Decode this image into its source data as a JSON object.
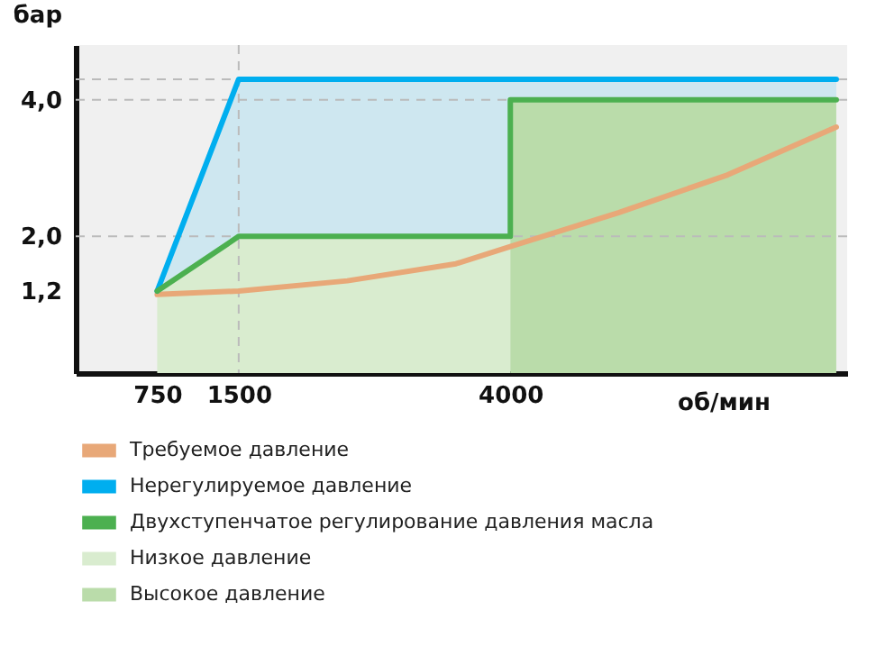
{
  "chart_data": {
    "type": "line",
    "xlabel": "об/мин",
    "ylabel": "бар",
    "xlim": [
      0,
      7100
    ],
    "ylim": [
      0,
      4.8
    ],
    "xticks": [
      750,
      1500,
      4000
    ],
    "yticks": [
      {
        "value": 1.2,
        "label": "1,2"
      },
      {
        "value": 2,
        "label": "2,0"
      },
      {
        "value": 4,
        "label": "4,0"
      }
    ],
    "legend": "bottom",
    "series": [
      {
        "name": "Требуемое давление",
        "type": "line",
        "color": "#e8a878",
        "x": [
          750,
          1500,
          2500,
          3500,
          4000,
          5000,
          6000,
          7000
        ],
        "values": [
          1.15,
          1.2,
          1.35,
          1.6,
          1.85,
          2.35,
          2.9,
          3.6
        ]
      },
      {
        "name": "Нерегулируемое давление",
        "type": "line",
        "color": "#00aeef",
        "x": [
          750,
          1500,
          4000,
          4000,
          7000
        ],
        "values": [
          1.2,
          4.3,
          4.3,
          4.3,
          4.3
        ],
        "lower": [
          1.2,
          2,
          2,
          4,
          4
        ],
        "upper": [
          1.2,
          4.3,
          4.3,
          4.3,
          4.3
        ]
      },
      {
        "name": "Двухступенчатое регулирование давления масла",
        "type": "line",
        "color": "#4cb050",
        "x": [
          750,
          1500,
          4000,
          4000,
          7000
        ],
        "values": [
          1.2,
          2,
          2,
          4,
          4
        ]
      },
      {
        "name": "Низкое давление",
        "type": "area",
        "color": "#d9eccf",
        "x": [
          750,
          1500,
          4000
        ],
        "values": [
          1.2,
          2,
          2
        ]
      },
      {
        "name": "Высокое давление",
        "type": "area",
        "color": "#badcaa",
        "x": [
          4000,
          7000
        ],
        "values": [
          4,
          4
        ]
      }
    ],
    "ref_lines": [
      {
        "axis": "y",
        "value": 4.3,
        "line_style": "dashed",
        "color": "#bbbbbb"
      },
      {
        "axis": "y",
        "value": 4,
        "line_style": "dashed",
        "color": "#bbbbbb"
      },
      {
        "axis": "y",
        "value": 2,
        "line_style": "dashed",
        "color": "#bbbbbb"
      },
      {
        "axis": "x",
        "value": 1500,
        "line_style": "dashed",
        "color": "#bbbbbb"
      }
    ]
  }
}
